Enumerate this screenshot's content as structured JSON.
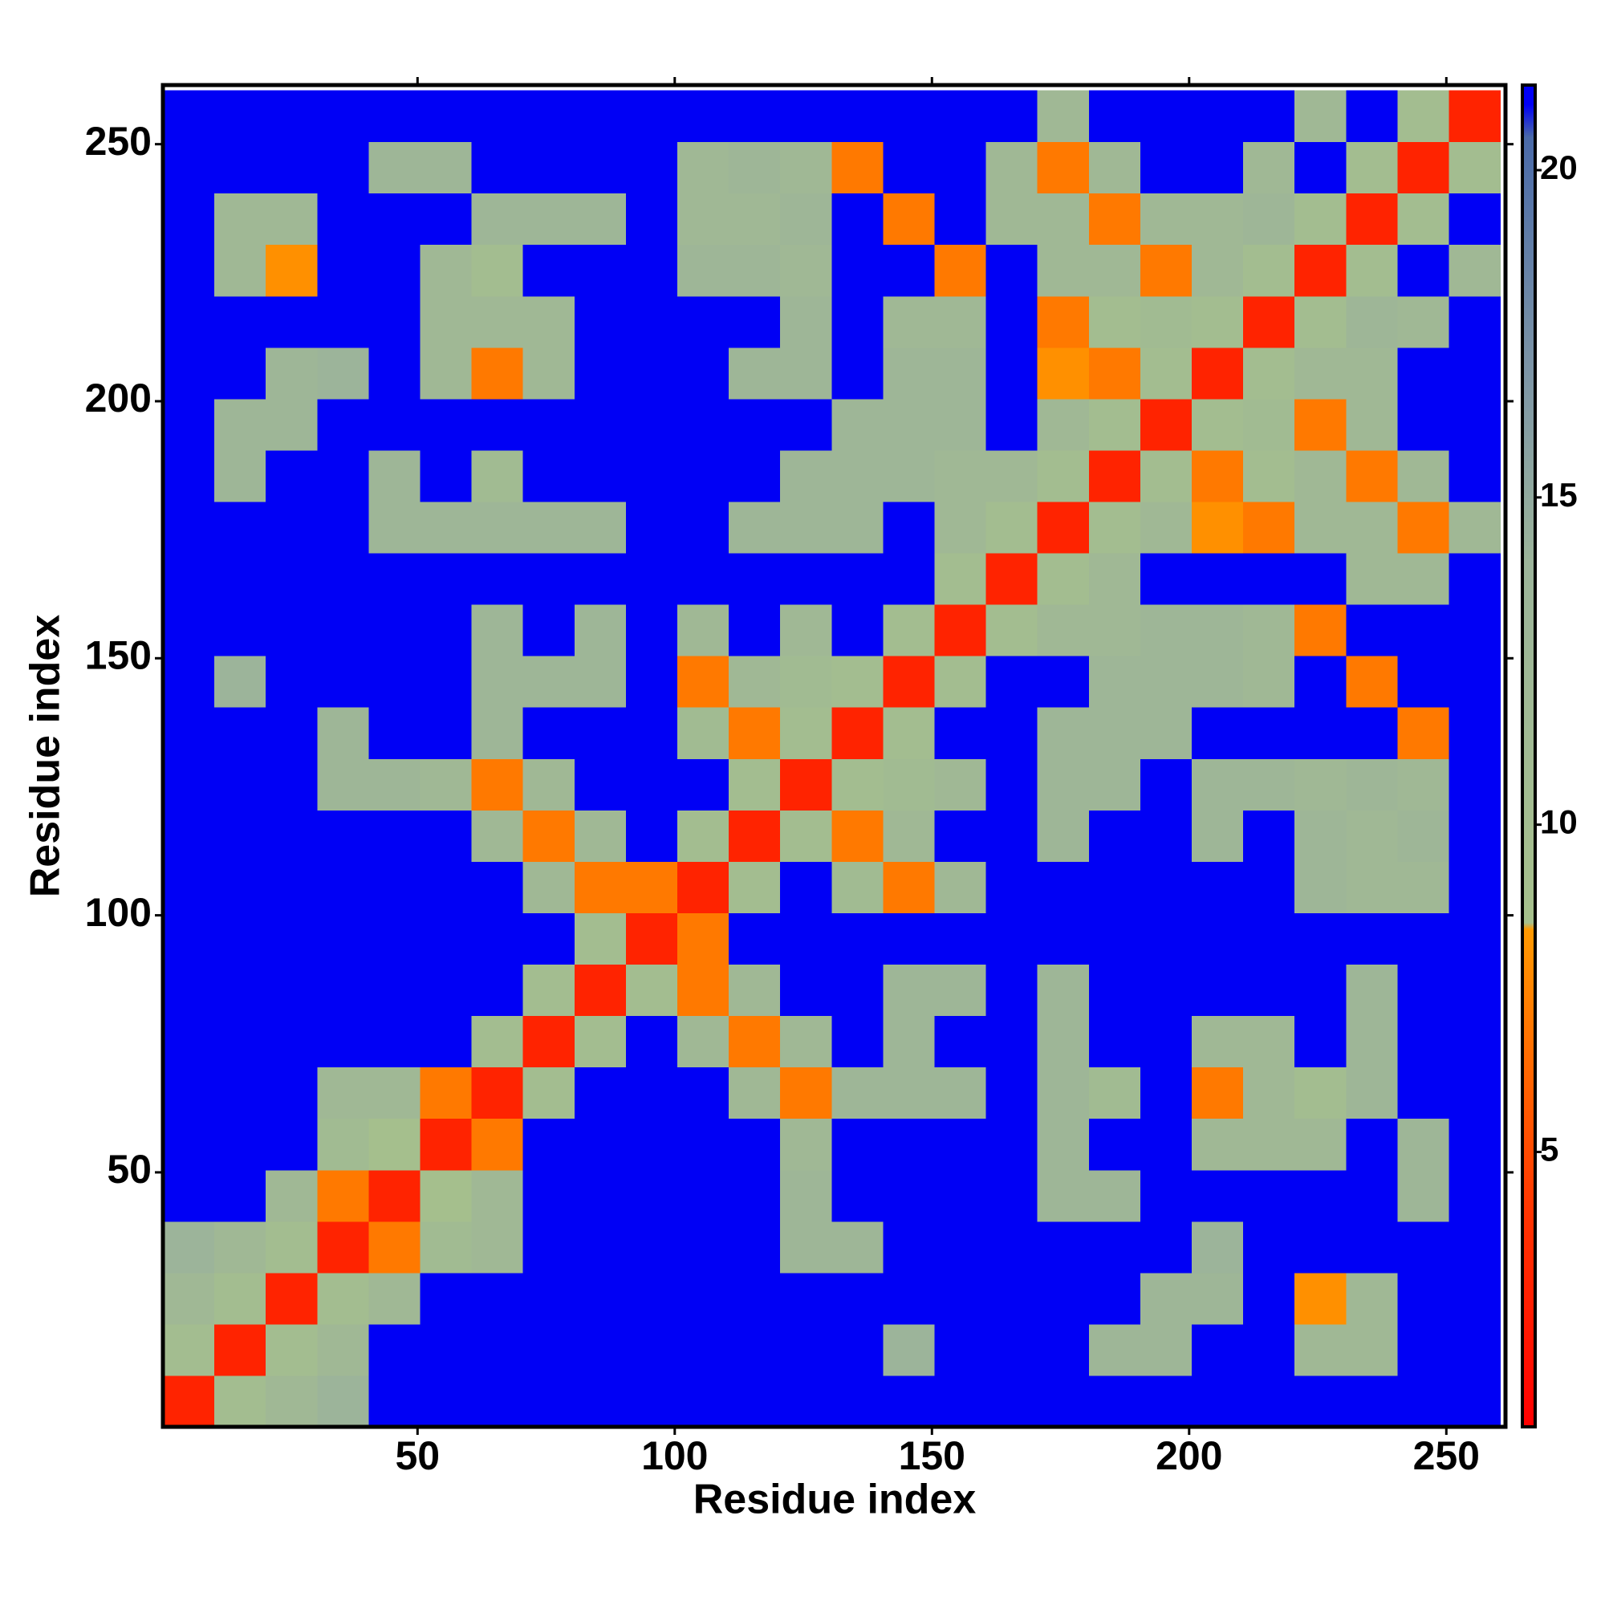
{
  "chart_data": {
    "type": "heatmap",
    "xlabel": "Residue index",
    "ylabel": "Residue index",
    "xlim": [
      0.5,
      261.5
    ],
    "ylim": [
      0.5,
      261.5
    ],
    "xticks": [
      50,
      100,
      150,
      200,
      250
    ],
    "yticks": [
      50,
      100,
      150,
      200,
      250
    ],
    "x_bins": [
      0.5,
      10.5,
      20.5,
      30.5,
      40.5,
      50.5,
      60.5,
      70.5,
      80.5,
      90.5,
      100.5,
      110.5,
      120.5,
      130.5,
      140.5,
      150.5,
      160.5,
      170.5,
      180.5,
      190.5,
      200.5,
      210.5,
      220.5,
      230.5,
      240.5,
      250.5,
      260.5
    ],
    "y_bins": [
      0.5,
      10.5,
      20.5,
      30.5,
      40.5,
      50.5,
      60.5,
      70.5,
      80.5,
      90.5,
      100.5,
      110.5,
      120.5,
      130.5,
      140.5,
      150.5,
      160.5,
      170.5,
      180.5,
      190.5,
      200.5,
      210.5,
      220.5,
      230.5,
      240.5,
      250.5,
      260.5
    ],
    "z": [
      [
        3,
        10,
        12,
        14,
        21,
        21,
        21,
        21,
        21,
        21,
        21,
        21,
        21,
        21,
        21,
        21,
        21,
        21,
        21,
        21,
        21,
        21,
        21,
        21,
        21,
        21
      ],
      [
        10,
        3,
        10,
        12,
        21,
        21,
        21,
        21,
        21,
        21,
        21,
        21,
        21,
        21,
        14,
        21,
        21,
        21,
        13,
        13,
        21,
        21,
        12,
        12,
        21,
        21
      ],
      [
        12,
        10,
        3,
        10,
        12,
        21,
        21,
        21,
        21,
        21,
        21,
        21,
        21,
        21,
        21,
        21,
        21,
        21,
        21,
        13,
        13,
        21,
        8,
        12,
        21,
        21
      ],
      [
        14,
        12,
        10,
        3,
        7,
        11,
        12,
        21,
        21,
        21,
        21,
        21,
        13,
        13,
        21,
        21,
        21,
        21,
        21,
        21,
        14,
        21,
        21,
        21,
        21,
        21
      ],
      [
        21,
        21,
        12,
        7,
        3,
        9,
        12,
        21,
        21,
        21,
        21,
        21,
        13,
        21,
        21,
        21,
        21,
        13,
        13,
        21,
        21,
        21,
        21,
        21,
        13,
        21
      ],
      [
        21,
        21,
        21,
        11,
        9,
        3,
        7,
        21,
        21,
        21,
        21,
        21,
        12,
        21,
        21,
        21,
        21,
        13,
        21,
        21,
        12,
        12,
        12,
        21,
        13,
        21
      ],
      [
        21,
        21,
        21,
        12,
        12,
        7,
        3,
        10,
        21,
        21,
        21,
        12,
        7,
        13,
        13,
        13,
        21,
        13,
        11,
        21,
        7,
        12,
        10,
        13,
        21,
        21
      ],
      [
        21,
        21,
        21,
        21,
        21,
        21,
        10,
        3,
        10,
        21,
        12,
        7,
        12,
        21,
        13,
        21,
        21,
        13,
        21,
        21,
        12,
        12,
        21,
        13,
        21,
        21
      ],
      [
        21,
        21,
        21,
        21,
        21,
        21,
        21,
        10,
        3,
        10,
        7,
        12,
        21,
        21,
        13,
        13,
        21,
        13,
        21,
        21,
        21,
        21,
        21,
        13,
        21,
        21
      ],
      [
        21,
        21,
        21,
        21,
        21,
        21,
        21,
        21,
        10,
        3,
        7,
        21,
        21,
        21,
        21,
        21,
        21,
        21,
        21,
        21,
        21,
        21,
        21,
        21,
        21,
        21
      ],
      [
        21,
        21,
        21,
        21,
        21,
        21,
        21,
        12,
        7,
        7,
        3,
        10,
        21,
        11,
        7,
        12,
        21,
        21,
        21,
        21,
        21,
        21,
        13,
        12,
        12,
        21
      ],
      [
        21,
        21,
        21,
        21,
        21,
        21,
        12,
        7,
        12,
        21,
        10,
        3,
        10,
        7,
        12,
        21,
        21,
        13,
        21,
        21,
        13,
        21,
        13,
        12,
        13,
        21
      ],
      [
        21,
        21,
        21,
        13,
        13,
        12,
        7,
        12,
        21,
        21,
        21,
        10,
        3,
        10,
        11,
        12,
        21,
        13,
        13,
        21,
        13,
        13,
        12,
        13,
        12,
        21
      ],
      [
        21,
        21,
        21,
        13,
        21,
        21,
        13,
        21,
        21,
        21,
        11,
        7,
        10,
        3,
        10,
        21,
        21,
        13,
        13,
        13,
        21,
        21,
        21,
        21,
        7,
        21
      ],
      [
        21,
        14,
        21,
        21,
        21,
        21,
        13,
        13,
        13,
        21,
        7,
        12,
        11,
        10,
        3,
        10,
        21,
        21,
        13,
        13,
        13,
        12,
        21,
        7,
        21,
        21
      ],
      [
        21,
        21,
        21,
        21,
        21,
        21,
        13,
        21,
        13,
        21,
        12,
        21,
        12,
        21,
        10,
        3,
        10,
        12,
        12,
        13,
        13,
        12,
        7,
        21,
        21,
        21
      ],
      [
        21,
        21,
        21,
        21,
        21,
        21,
        21,
        21,
        21,
        21,
        21,
        21,
        21,
        21,
        21,
        10,
        3,
        10,
        12,
        21,
        21,
        21,
        21,
        12,
        12,
        21
      ],
      [
        21,
        21,
        21,
        21,
        13,
        13,
        13,
        13,
        13,
        21,
        21,
        13,
        13,
        13,
        21,
        12,
        10,
        3,
        10,
        12,
        8,
        7,
        12,
        12,
        7,
        12
      ],
      [
        21,
        13,
        21,
        21,
        13,
        21,
        11,
        21,
        21,
        21,
        21,
        21,
        13,
        13,
        13,
        12,
        12,
        10,
        3,
        10,
        7,
        10,
        12,
        7,
        12,
        21
      ],
      [
        21,
        13,
        13,
        21,
        21,
        21,
        21,
        21,
        21,
        21,
        21,
        21,
        21,
        13,
        13,
        13,
        21,
        12,
        10,
        3,
        10,
        11,
        7,
        12,
        21,
        21
      ],
      [
        21,
        21,
        13,
        14,
        21,
        12,
        7,
        12,
        21,
        21,
        21,
        13,
        13,
        21,
        13,
        13,
        21,
        8,
        7,
        10,
        3,
        10,
        12,
        12,
        21,
        21
      ],
      [
        21,
        21,
        21,
        21,
        21,
        12,
        12,
        12,
        21,
        21,
        21,
        21,
        13,
        21,
        12,
        12,
        21,
        7,
        10,
        11,
        10,
        3,
        10,
        13,
        12,
        21
      ],
      [
        21,
        12,
        8,
        21,
        21,
        12,
        10,
        21,
        21,
        21,
        13,
        13,
        12,
        21,
        21,
        7,
        21,
        12,
        12,
        7,
        12,
        10,
        3,
        10,
        21,
        12
      ],
      [
        21,
        12,
        12,
        21,
        21,
        21,
        13,
        13,
        13,
        21,
        12,
        12,
        13,
        21,
        7,
        21,
        12,
        12,
        7,
        12,
        12,
        13,
        10,
        3,
        10,
        21
      ],
      [
        21,
        21,
        21,
        21,
        13,
        13,
        21,
        21,
        21,
        21,
        12,
        13,
        12,
        7,
        21,
        21,
        12,
        7,
        12,
        21,
        21,
        12,
        21,
        10,
        3,
        10
      ],
      [
        21,
        21,
        21,
        21,
        21,
        21,
        21,
        21,
        21,
        21,
        21,
        21,
        21,
        21,
        21,
        21,
        21,
        12,
        21,
        21,
        21,
        21,
        12,
        21,
        10,
        3
      ]
    ],
    "clim": [
      0.8,
      21.3
    ],
    "cticks": [
      5,
      10,
      15,
      20
    ],
    "colorscale": [
      [
        0.8,
        "#ff0000"
      ],
      [
        4,
        "#ff3300"
      ],
      [
        8.4,
        "#ff9900"
      ],
      [
        8.5,
        "#a6c08c"
      ],
      [
        14,
        "#9cb49a"
      ],
      [
        17,
        "#7c94a6"
      ],
      [
        20.5,
        "#4a6aa8"
      ],
      [
        21,
        "#0000f5"
      ],
      [
        21.3,
        "#0000f5"
      ]
    ]
  }
}
